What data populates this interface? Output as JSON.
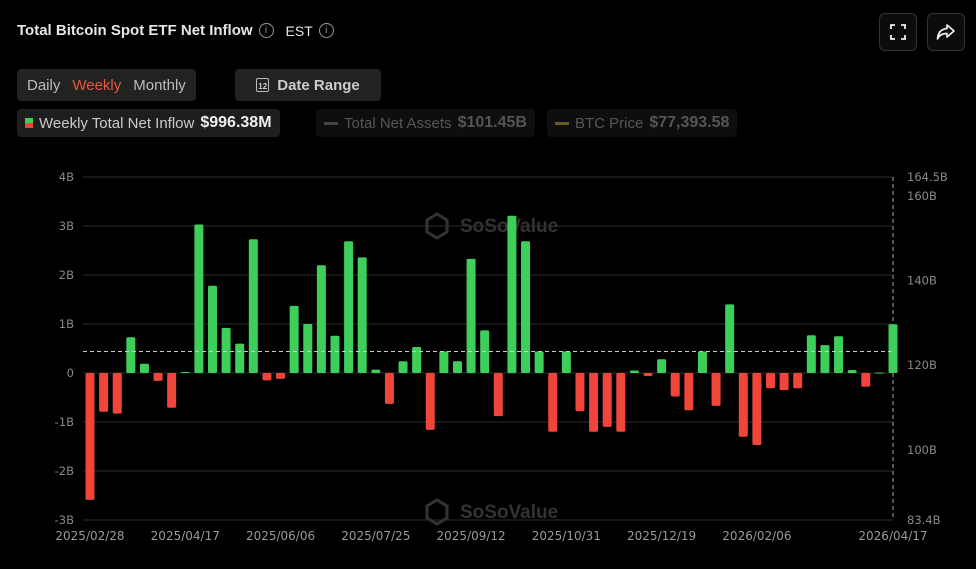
{
  "header": {
    "title": "Total Bitcoin Spot ETF Net Inflow",
    "timezone": "EST",
    "info_icon": "i"
  },
  "toolbar": {
    "periods": [
      "Daily",
      "Weekly",
      "Monthly"
    ],
    "active_period": "Weekly",
    "date_range_label": "Date Range",
    "calendar_day": "12"
  },
  "legend": [
    {
      "label": "Weekly Total Net Inflow",
      "value": "$996.38M",
      "active": true
    },
    {
      "label": "Total Net Assets",
      "value": "$101.45B",
      "active": false
    },
    {
      "label": "BTC Price",
      "value": "$77,393.58",
      "active": false
    }
  ],
  "watermark": "SoSoValue",
  "colors": {
    "positive": "#3ecf5a",
    "negative": "#f0453a",
    "accent": "#e8573a",
    "btc": "#6b5a1e"
  },
  "chart_data": {
    "type": "bar",
    "title": "Total Bitcoin Spot ETF Net Inflow",
    "series_name": "Weekly Total Net Inflow",
    "unit": "B USD",
    "values": [
      -2.59,
      -0.79,
      -0.83,
      0.73,
      0.19,
      -0.16,
      -0.71,
      0.02,
      3.03,
      1.78,
      0.92,
      0.6,
      2.73,
      -0.15,
      -0.12,
      1.37,
      1.0,
      2.2,
      0.76,
      2.69,
      2.36,
      0.07,
      -0.63,
      0.24,
      0.53,
      -1.16,
      0.44,
      0.24,
      2.33,
      0.87,
      -0.88,
      3.21,
      2.69,
      0.44,
      -1.2,
      0.44,
      -0.78,
      -1.2,
      -1.1,
      -1.2,
      0.05,
      -0.06,
      0.28,
      -0.48,
      -0.76,
      0.44,
      -0.67,
      1.4,
      -1.3,
      -1.47,
      -0.31,
      -0.35,
      -0.31,
      0.77,
      0.57,
      0.75,
      0.06,
      -0.28,
      0.01,
      0.996
    ],
    "x_tick_labels": [
      {
        "index": 0,
        "label": "2025/02/28"
      },
      {
        "index": 7,
        "label": "2025/04/17"
      },
      {
        "index": 14,
        "label": "2025/06/06"
      },
      {
        "index": 21,
        "label": "2025/07/25"
      },
      {
        "index": 28,
        "label": "2025/09/12"
      },
      {
        "index": 35,
        "label": "2025/10/31"
      },
      {
        "index": 42,
        "label": "2025/12/19"
      },
      {
        "index": 49,
        "label": "2026/02/06"
      },
      {
        "index": 59,
        "label": "2026/04/17"
      }
    ],
    "ylim": [
      -3,
      4
    ],
    "y_ticks": [
      {
        "v": 4,
        "label": "4B"
      },
      {
        "v": 3,
        "label": "3B"
      },
      {
        "v": 2,
        "label": "2B"
      },
      {
        "v": 1,
        "label": "1B"
      },
      {
        "v": 0,
        "label": "0"
      },
      {
        "v": -1,
        "label": "-1B"
      },
      {
        "v": -2,
        "label": "-2B"
      },
      {
        "v": -3,
        "label": "-3B"
      }
    ],
    "y2lim": [
      83.4,
      164.5
    ],
    "y2_ticks": [
      {
        "v": 164.5,
        "label": "164.5B"
      },
      {
        "v": 160,
        "label": "160B"
      },
      {
        "v": 140,
        "label": "140B"
      },
      {
        "v": 120,
        "label": "120B"
      },
      {
        "v": 100,
        "label": "100B"
      },
      {
        "v": 83.4,
        "label": "83.4B"
      }
    ],
    "reference_line": 0.44,
    "grid": true
  }
}
